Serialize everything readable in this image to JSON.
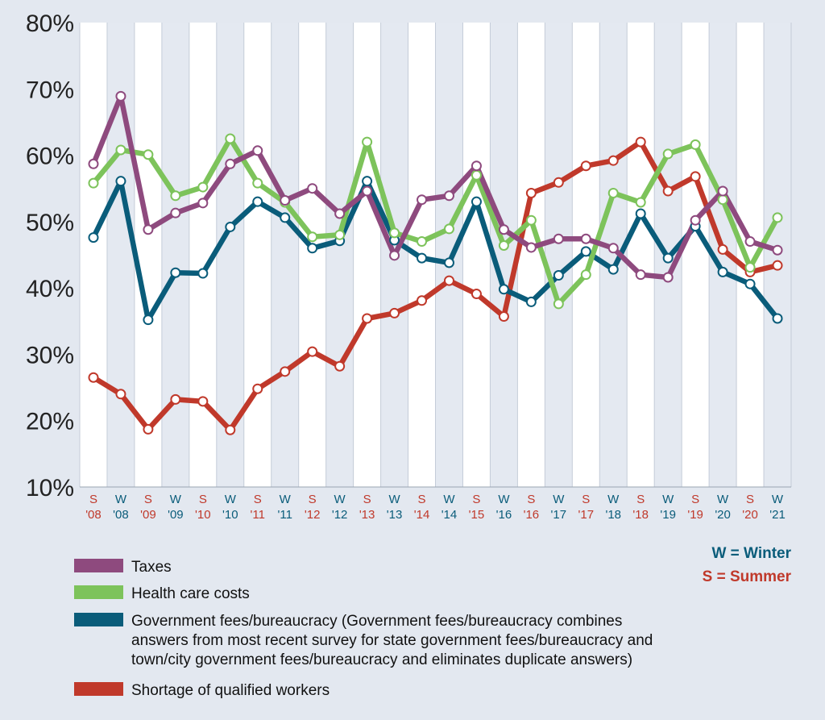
{
  "chart_data": {
    "type": "line",
    "ylim": [
      10,
      80
    ],
    "yticks": [
      "10%",
      "20%",
      "30%",
      "40%",
      "50%",
      "60%",
      "70%",
      "80%"
    ],
    "categories": [
      {
        "season": "S",
        "year": "'08"
      },
      {
        "season": "W",
        "year": "'08"
      },
      {
        "season": "S",
        "year": "'09"
      },
      {
        "season": "W",
        "year": "'09"
      },
      {
        "season": "S",
        "year": "'10"
      },
      {
        "season": "W",
        "year": "'10"
      },
      {
        "season": "S",
        "year": "'11"
      },
      {
        "season": "W",
        "year": "'11"
      },
      {
        "season": "S",
        "year": "'12"
      },
      {
        "season": "W",
        "year": "'12"
      },
      {
        "season": "S",
        "year": "'13"
      },
      {
        "season": "W",
        "year": "'13"
      },
      {
        "season": "S",
        "year": "'14"
      },
      {
        "season": "W",
        "year": "'14"
      },
      {
        "season": "S",
        "year": "'15"
      },
      {
        "season": "W",
        "year": "'16"
      },
      {
        "season": "S",
        "year": "'16"
      },
      {
        "season": "W",
        "year": "'17"
      },
      {
        "season": "S",
        "year": "'17"
      },
      {
        "season": "W",
        "year": "'18"
      },
      {
        "season": "S",
        "year": "'18"
      },
      {
        "season": "W",
        "year": "'19"
      },
      {
        "season": "S",
        "year": "'19"
      },
      {
        "season": "W",
        "year": "'20"
      },
      {
        "season": "S",
        "year": "'20"
      },
      {
        "season": "W",
        "year": "'21"
      }
    ],
    "series": [
      {
        "name": "Shortage of qualified workers",
        "color": "#c0392b",
        "values": [
          26.5,
          24,
          18.7,
          23.2,
          22.9,
          18.6,
          24.8,
          27.4,
          30.4,
          28.2,
          35.4,
          36.2,
          38.1,
          41.1,
          39.1,
          35.7,
          54.3,
          55.9,
          58.4,
          59.2,
          62,
          54.6,
          56.8,
          45.8,
          42.4,
          43.4
        ]
      },
      {
        "name": "Government fees/bureaucracy (Government fees/bureaucracy combines answers from most recent survey for state government fees/bureaucracy and town/city government fees/bureaucracy and eliminates duplicate answers)",
        "color": "#0a5c7a",
        "values": [
          47.6,
          56.1,
          35.2,
          42.3,
          42.2,
          49.2,
          53,
          50.6,
          46,
          47.1,
          56.1,
          47.2,
          44.5,
          43.8,
          53,
          39.8,
          37.9,
          41.9,
          45.5,
          42.8,
          51.2,
          44.5,
          49.3,
          42.4,
          40.6,
          35.4
        ]
      },
      {
        "name": "Health care costs",
        "color": "#7dc35b",
        "values": [
          55.8,
          60.8,
          60.1,
          53.9,
          55.2,
          62.5,
          55.8,
          52.9,
          47.7,
          48,
          62,
          48.3,
          47,
          48.9,
          57,
          46.4,
          50.2,
          37.6,
          42,
          54.3,
          52.9,
          60.2,
          61.6,
          53.3,
          43.1,
          50.6
        ]
      },
      {
        "name": "Taxes",
        "color": "#8e4a7e",
        "values": [
          58.7,
          68.9,
          48.8,
          51.3,
          52.8,
          58.7,
          60.7,
          53.2,
          55,
          51.2,
          54.6,
          44.9,
          53.3,
          53.9,
          58.4,
          48.8,
          46.1,
          47.4,
          47.4,
          46,
          42,
          41.6,
          50.2,
          54.6,
          47,
          45.7
        ]
      }
    ],
    "legend": [
      {
        "lines": [
          "Taxes"
        ],
        "color": "#8e4a7e"
      },
      {
        "lines": [
          "Health care costs"
        ],
        "color": "#7dc35b"
      },
      {
        "lines": [
          "Government fees/bureaucracy (Government fees/bureaucracy combines",
          "answers from most recent survey for state government fees/bureaucracy and",
          "town/city government fees/bureaucracy and eliminates duplicate answers)"
        ],
        "color": "#0a5c7a"
      },
      {
        "lines": [
          "Shortage of qualified workers"
        ],
        "color": "#c0392b"
      }
    ],
    "season_key": [
      {
        "text": "W = Winter",
        "color": "#0a5c7a"
      },
      {
        "text": "S = Summer",
        "color": "#c0392b"
      }
    ],
    "season_colors": {
      "S": "#c0392b",
      "W": "#0a5c7a"
    }
  }
}
